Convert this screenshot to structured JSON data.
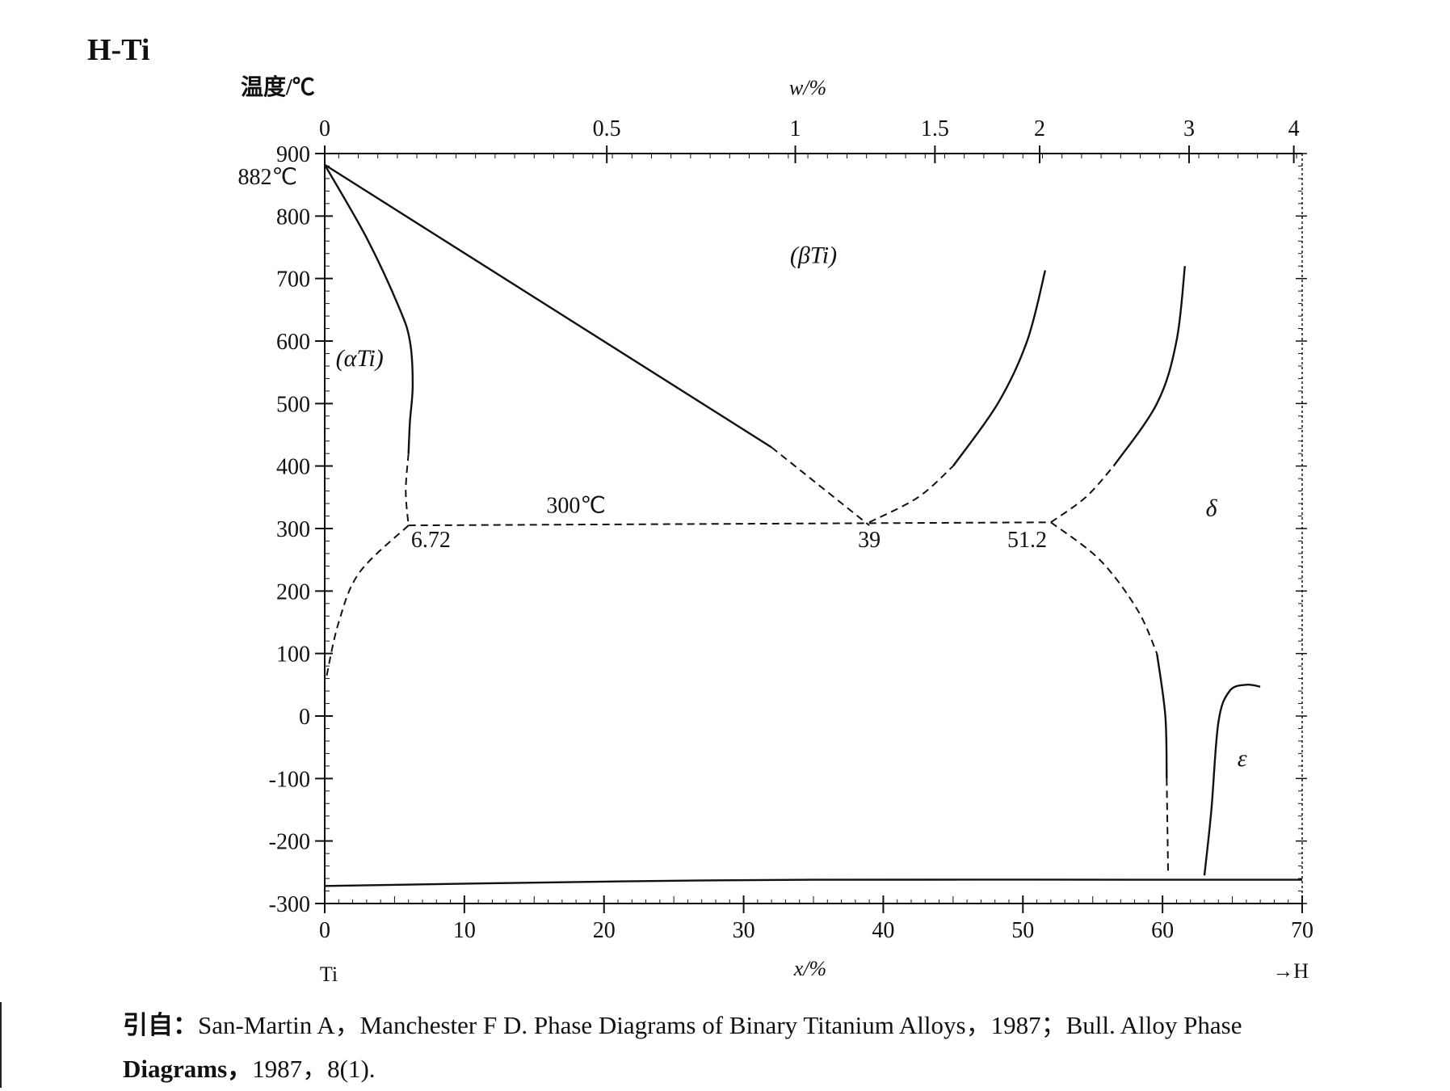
{
  "title": "H-Ti",
  "axes": {
    "y_label": "温度/℃",
    "y_ticks": [
      "900",
      "800",
      "700",
      "600",
      "500",
      "400",
      "300",
      "200",
      "100",
      "0",
      "-100",
      "-200",
      "-300"
    ],
    "y_values": [
      900,
      800,
      700,
      600,
      500,
      400,
      300,
      200,
      100,
      0,
      -100,
      -200,
      -300
    ],
    "y_extra_label": "882℃",
    "x_bottom_label": "x/%",
    "x_bottom_ticks": [
      "0",
      "10",
      "20",
      "30",
      "40",
      "50",
      "60",
      "70"
    ],
    "x_bottom_values": [
      0,
      10,
      20,
      30,
      40,
      50,
      60,
      70
    ],
    "x_top_label": "w/%",
    "x_top_ticks": [
      "0",
      "0.5",
      "1",
      "1.5",
      "2",
      "3",
      "4"
    ],
    "x_top_positions_at": [
      0,
      20.2,
      33.7,
      43.7,
      51.2,
      61.9,
      69.4
    ],
    "left_element": "Ti",
    "right_element": "→H",
    "xlim": [
      0,
      70
    ],
    "ylim": [
      -300,
      900
    ]
  },
  "phase_labels": [
    {
      "id": "alpha",
      "text": "(αTi)",
      "x": 2.5,
      "y": 560
    },
    {
      "id": "beta",
      "text": "(βTi)",
      "x": 35,
      "y": 725
    },
    {
      "id": "delta",
      "text": "δ",
      "x": 63.5,
      "y": 320
    },
    {
      "id": "epsilon",
      "text": "ε",
      "x": 65.7,
      "y": -80
    }
  ],
  "point_labels": [
    {
      "id": "t300",
      "text": "300℃",
      "x": 18,
      "y": 325
    },
    {
      "id": "p672",
      "text": "6.72",
      "x": 7.6,
      "y": 270
    },
    {
      "id": "p39",
      "text": "39",
      "x": 39,
      "y": 270
    },
    {
      "id": "p512",
      "text": "51.2",
      "x": 50.3,
      "y": 270
    }
  ],
  "lines": [
    {
      "id": "alpha-solvus",
      "style": "solid",
      "points": [
        [
          0,
          882
        ],
        [
          3,
          765
        ],
        [
          5.3,
          655
        ],
        [
          6.1,
          600
        ],
        [
          6.3,
          530
        ],
        [
          6.1,
          470
        ],
        [
          6.0,
          420
        ]
      ]
    },
    {
      "id": "alpha-solvus-ext",
      "style": "dashed",
      "points": [
        [
          6.0,
          420
        ],
        [
          5.8,
          360
        ],
        [
          6.0,
          305
        ]
      ]
    },
    {
      "id": "beta-transus",
      "style": "solid",
      "points": [
        [
          0,
          882
        ],
        [
          32,
          430
        ]
      ]
    },
    {
      "id": "beta-transus-ext",
      "style": "dashed",
      "points": [
        [
          32,
          430
        ],
        [
          39,
          305
        ]
      ]
    },
    {
      "id": "eutectoid",
      "style": "dashed",
      "points": [
        [
          6.0,
          305
        ],
        [
          52,
          310
        ]
      ]
    },
    {
      "id": "alpha-low",
      "style": "dashed",
      "points": [
        [
          6.0,
          305
        ],
        [
          2.5,
          230
        ],
        [
          1,
          150
        ],
        [
          0.1,
          60
        ]
      ]
    },
    {
      "id": "beta-delta-left",
      "style": "solid",
      "points": [
        [
          45,
          400
        ],
        [
          48.2,
          500
        ],
        [
          50.3,
          600
        ],
        [
          51.6,
          713
        ]
      ]
    },
    {
      "id": "beta-delta-left-ext",
      "style": "dashed",
      "points": [
        [
          39,
          310
        ],
        [
          42.5,
          350
        ],
        [
          45,
          400
        ]
      ]
    },
    {
      "id": "beta-delta-right",
      "style": "solid",
      "points": [
        [
          56.5,
          400
        ],
        [
          59.6,
          500
        ],
        [
          61.0,
          600
        ],
        [
          61.6,
          720
        ]
      ]
    },
    {
      "id": "beta-delta-right-ext",
      "style": "dashed",
      "points": [
        [
          52,
          310
        ],
        [
          54.5,
          350
        ],
        [
          56.5,
          400
        ]
      ]
    },
    {
      "id": "delta-solvus-dashed",
      "style": "dashed",
      "points": [
        [
          52,
          310
        ],
        [
          55.5,
          250
        ],
        [
          58.2,
          170
        ],
        [
          59.6,
          100
        ]
      ]
    },
    {
      "id": "delta-solvus",
      "style": "solid",
      "points": [
        [
          59.6,
          100
        ],
        [
          60.2,
          0
        ],
        [
          60.3,
          -100
        ]
      ]
    },
    {
      "id": "delta-solvus-low",
      "style": "dashed",
      "points": [
        [
          60.3,
          -100
        ],
        [
          60.4,
          -255
        ]
      ]
    },
    {
      "id": "epsilon-boundary",
      "style": "solid",
      "points": [
        [
          63,
          -255
        ],
        [
          63.5,
          -150
        ],
        [
          64.0,
          -10
        ],
        [
          64.8,
          40
        ],
        [
          66.0,
          50
        ],
        [
          67.0,
          47
        ]
      ]
    },
    {
      "id": "base-line",
      "style": "solid",
      "points": [
        [
          0,
          -272
        ],
        [
          20,
          -265
        ],
        [
          35,
          -262
        ],
        [
          60,
          -262
        ],
        [
          70,
          -262
        ]
      ]
    }
  ],
  "caption": {
    "prefix": "引自：",
    "text": "San-Martin A，Manchester F D.  Phase Diagrams of Binary Titanium Alloys，1987；Bull.  Alloy Phase",
    "line2_bold": "Diagrams，",
    "line2_rest": "1987，8(1)."
  }
}
